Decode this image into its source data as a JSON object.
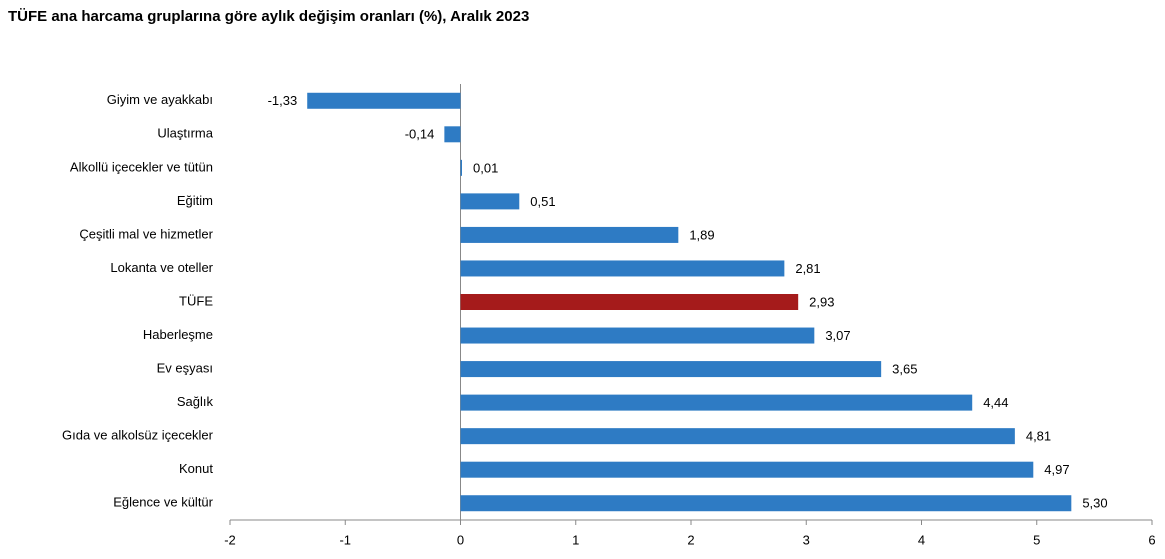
{
  "chart_data": {
    "type": "hbar",
    "title": "TÜFE ana harcama gruplarına göre aylık değişim oranları (%), Aralık 2023",
    "categories": [
      "Giyim ve ayakkabı",
      "Ulaştırma",
      "Alkollü içecekler ve tütün",
      "Eğitim",
      "Çeşitli mal ve hizmetler",
      "Lokanta ve oteller",
      "TÜFE",
      "Haberleşme",
      "Ev eşyası",
      "Sağlık",
      "Gıda ve alkolsüz içecekler",
      "Konut",
      "Eğlence ve kültür"
    ],
    "values": [
      -1.33,
      -0.14,
      0.01,
      0.51,
      1.89,
      2.81,
      2.93,
      3.07,
      3.65,
      4.44,
      4.81,
      4.97,
      5.3
    ],
    "value_labels": [
      "-1,33",
      "-0,14",
      "0,01",
      "0,51",
      "1,89",
      "2,81",
      "2,93",
      "3,07",
      "3,65",
      "4,44",
      "4,81",
      "4,97",
      "5,30"
    ],
    "colors": [
      "#2e7bc4",
      "#2e7bc4",
      "#2e7bc4",
      "#2e7bc4",
      "#2e7bc4",
      "#2e7bc4",
      "#a51b1b",
      "#2e7bc4",
      "#2e7bc4",
      "#2e7bc4",
      "#2e7bc4",
      "#2e7bc4",
      "#2e7bc4"
    ],
    "xlim": [
      -2,
      6
    ],
    "xticks": [
      -2,
      -1,
      0,
      1,
      2,
      3,
      4,
      5,
      6
    ]
  }
}
